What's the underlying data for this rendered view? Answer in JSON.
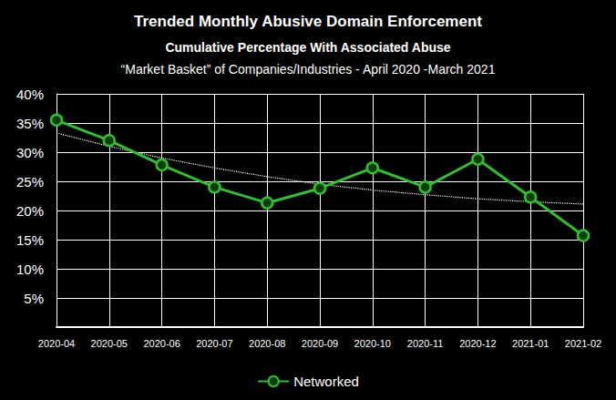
{
  "chart_data": {
    "type": "line",
    "title": "Trended Monthly Abusive Domain Enforcement",
    "subtitle": [
      "Cumulative Percentage With Associated Abuse",
      "“Market Basket” of Companies/Industries - April 2020 -March 2021"
    ],
    "categories": [
      "2020-04",
      "2020-05",
      "2020-06",
      "2020-07",
      "2020-08",
      "2020-09",
      "2020-10",
      "2020-11",
      "2020-12",
      "2021-01",
      "2021-02"
    ],
    "series": [
      {
        "name": "Networked",
        "color": "#2fbf2f",
        "marker": "circle",
        "line_style": "solid",
        "values": [
          35.5,
          32,
          27.8,
          24,
          21.3,
          23.8,
          27.3,
          24,
          28.8,
          22.3,
          15.7
        ]
      },
      {
        "color": "#ffffff",
        "marker": "none",
        "line_style": "dotted",
        "values": [
          33.3,
          31,
          29,
          27.3,
          25.8,
          24.5,
          23.5,
          22.7,
          22,
          21.5,
          21.1
        ]
      }
    ],
    "ylim": [
      0,
      40
    ],
    "yticks": [
      {
        "value": 5,
        "label": "5%"
      },
      {
        "value": 10,
        "label": "10%"
      },
      {
        "value": 15,
        "label": "15%"
      },
      {
        "value": 20,
        "label": "20%"
      },
      {
        "value": 25,
        "label": "25%"
      },
      {
        "value": 30,
        "label": "30%"
      },
      {
        "value": 35,
        "label": "35%"
      },
      {
        "value": 40,
        "label": "40%"
      }
    ],
    "grid": true,
    "legend": "bottom"
  }
}
